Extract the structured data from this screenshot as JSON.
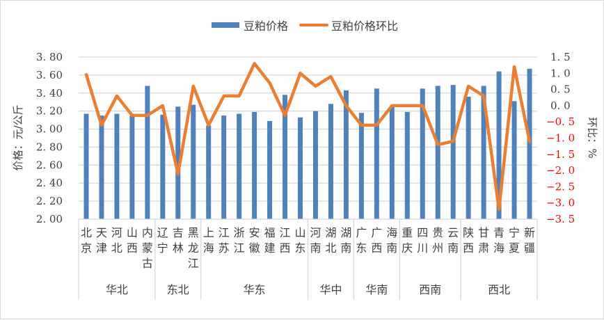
{
  "legend": {
    "bar_label": "豆粕价格",
    "line_label": "豆粕价格环比"
  },
  "axes": {
    "left_title": "价格：元/公斤",
    "right_title": "环比：%"
  },
  "colors": {
    "bar": "#4f81bd",
    "line": "#ed7d31",
    "grid": "#d9d9d9",
    "negative_tick": "#ff0000"
  },
  "chart_data": {
    "type": "bar+line",
    "title": "",
    "categories": [
      "北京",
      "天津",
      "河北",
      "山西",
      "内蒙古",
      "辽宁",
      "吉林",
      "黑龙江",
      "上海",
      "江苏",
      "浙江",
      "安徽",
      "福建",
      "江西",
      "山东",
      "河南",
      "湖北",
      "湖南",
      "广东",
      "广西",
      "海南",
      "重庆",
      "四川",
      "贵州",
      "云南",
      "陕西",
      "甘肃",
      "青海",
      "宁夏",
      "新疆"
    ],
    "groups": [
      {
        "name": "华北",
        "count": 5
      },
      {
        "name": "东北",
        "count": 3
      },
      {
        "name": "华东",
        "count": 7
      },
      {
        "name": "华中",
        "count": 3
      },
      {
        "name": "华南",
        "count": 3
      },
      {
        "name": "西南",
        "count": 4
      },
      {
        "name": "西北",
        "count": 5
      }
    ],
    "series": [
      {
        "name": "豆粕价格",
        "type": "bar",
        "axis": "left",
        "values": [
          3.17,
          3.15,
          3.17,
          3.15,
          3.48,
          3.16,
          3.25,
          3.27,
          3.04,
          3.15,
          3.17,
          3.19,
          3.09,
          3.38,
          3.13,
          3.2,
          3.28,
          3.43,
          3.18,
          3.45,
          3.25,
          3.19,
          3.45,
          3.48,
          3.49,
          3.36,
          3.48,
          3.64,
          3.31,
          3.67
        ]
      },
      {
        "name": "豆粕价格环比",
        "type": "line",
        "axis": "right",
        "values": [
          0.96,
          -0.6,
          0.3,
          -0.3,
          -0.3,
          0.0,
          -2.1,
          0.6,
          -0.6,
          0.3,
          0.3,
          1.3,
          0.7,
          -0.3,
          1.0,
          0.6,
          0.9,
          0.0,
          -0.6,
          -0.6,
          0.0,
          0.0,
          0.0,
          -1.2,
          -1.1,
          0.6,
          0.3,
          -3.2,
          1.2,
          -1.1
        ]
      }
    ],
    "ylabel": "价格：元/公斤",
    "ylim": [
      2.0,
      3.8
    ],
    "yticks": [
      "3.80",
      "3.60",
      "3.40",
      "3.20",
      "3.00",
      "2.80",
      "2.60",
      "2.40",
      "2.20",
      "2.00"
    ],
    "y2label": "环比：%",
    "y2lim": [
      -3.5,
      1.5
    ],
    "y2ticks": [
      "1.5",
      "1.0",
      "0.5",
      "0.0",
      "-0.5",
      "-1.0",
      "-1.5",
      "-2.0",
      "-2.5",
      "-3.0",
      "-3.5"
    ],
    "grid": true,
    "legend_position": "top"
  }
}
